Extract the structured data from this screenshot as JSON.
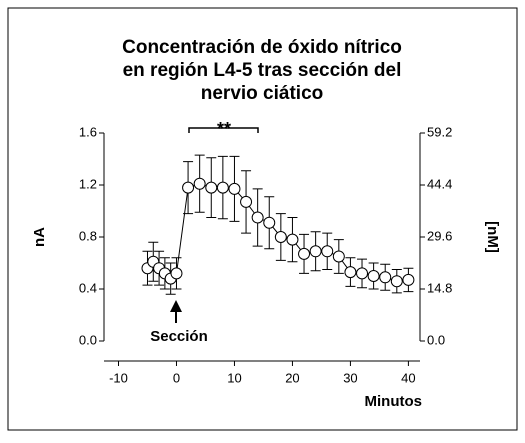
{
  "chart_data": {
    "type": "line",
    "title": [
      "Concentración de óxido nítrico",
      "en región L4-5 tras sección del",
      "nervio ciático"
    ],
    "x_label": "Minutos",
    "y_label": "nA",
    "y2_label": "[nM]",
    "annotations": [
      "Sección",
      "**"
    ],
    "x": [
      -5,
      -4,
      -3,
      -2,
      -1,
      0,
      2,
      4,
      6,
      8,
      10,
      12,
      14,
      16,
      18,
      20,
      22,
      24,
      26,
      28,
      30,
      32,
      34,
      36,
      38,
      40
    ],
    "series": [
      {
        "color": "#000000",
        "values": [
          0.56,
          0.61,
          0.56,
          0.52,
          0.48,
          0.52,
          1.18,
          1.21,
          1.18,
          1.18,
          1.17,
          1.07,
          0.95,
          0.91,
          0.8,
          0.78,
          0.67,
          0.69,
          0.69,
          0.65,
          0.53,
          0.52,
          0.5,
          0.49,
          0.46,
          0.47
        ],
        "errors": [
          0.13,
          0.15,
          0.13,
          0.12,
          0.12,
          0.12,
          0.2,
          0.22,
          0.23,
          0.24,
          0.25,
          0.24,
          0.22,
          0.2,
          0.18,
          0.17,
          0.15,
          0.15,
          0.14,
          0.13,
          0.11,
          0.11,
          0.1,
          0.1,
          0.09,
          0.09
        ]
      }
    ],
    "xlim": [
      -12.5,
      42
    ],
    "xticks": [
      -10,
      0,
      10,
      20,
      30,
      40
    ],
    "ylim": [
      0,
      1.6
    ],
    "yticks": [
      {
        "value": 0,
        "label": "0.0"
      },
      0.4,
      0.8,
      1.2,
      1.6
    ],
    "y2lim": [
      0,
      59.2
    ],
    "y2ticks": [
      {
        "value": 0,
        "label": "0.0"
      },
      14.8,
      29.6,
      44.4,
      59.2
    ]
  }
}
